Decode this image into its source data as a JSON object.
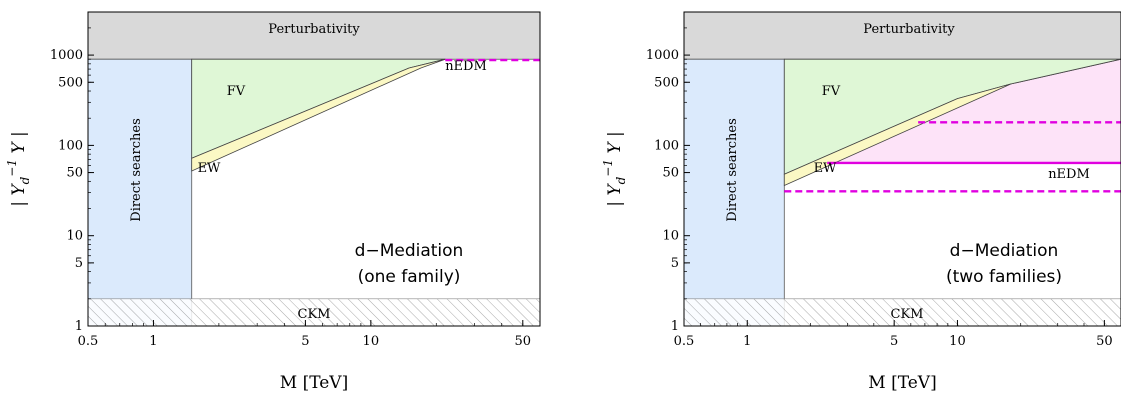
{
  "chart_data": [
    {
      "type": "area",
      "scale": {
        "x": "log",
        "y": "log"
      },
      "xlim": [
        0.5,
        60
      ],
      "ylim": [
        1,
        3000
      ],
      "xlabel": "M [TeV]",
      "ylabel": "| Y_d^{-1} Y |",
      "xticks": [
        "0.5",
        "1",
        "5",
        "10",
        "50"
      ],
      "xtick_values": [
        0.5,
        1,
        5,
        10,
        50
      ],
      "yticks": [
        "1",
        "5",
        "10",
        "50",
        "100",
        "500",
        "1000"
      ],
      "ytick_values": [
        1,
        5,
        10,
        50,
        100,
        500,
        1000
      ],
      "annotation": [
        "d−Mediation",
        "(one family)"
      ],
      "regions": [
        {
          "label": "Perturbativity",
          "kind": "band_y",
          "y": [
            900,
            3000
          ],
          "color": "#d9d9d9"
        },
        {
          "label": "Direct searches",
          "kind": "band_x",
          "x": [
            0.5,
            1.5
          ],
          "color": "#dbeafc"
        },
        {
          "label": "CKM",
          "kind": "hatch_y",
          "y": [
            1,
            2
          ]
        },
        {
          "label": "FV",
          "kind": "polygon",
          "color": "#dff7d6",
          "points": [
            [
              1.5,
              900
            ],
            [
              22,
              900
            ],
            [
              15,
              720
            ],
            [
              1.5,
              72
            ]
          ]
        },
        {
          "label": "EW",
          "kind": "polygon",
          "color": "#fbf8c4",
          "points": [
            [
              1.5,
              72
            ],
            [
              15,
              720
            ],
            [
              22,
              900
            ],
            [
              17,
              720
            ],
            [
              1.5,
              52
            ]
          ]
        }
      ],
      "lines": [
        {
          "label": "nEDM",
          "style": "dashed",
          "color": "#e000e0",
          "points": [
            [
              22,
              880
            ],
            [
              60,
              880
            ]
          ]
        }
      ]
    },
    {
      "type": "area",
      "scale": {
        "x": "log",
        "y": "log"
      },
      "xlim": [
        0.5,
        60
      ],
      "ylim": [
        1,
        3000
      ],
      "xlabel": "M [TeV]",
      "ylabel": "| Y_d^{-1} Y |",
      "xticks": [
        "0.5",
        "1",
        "5",
        "10",
        "50"
      ],
      "xtick_values": [
        0.5,
        1,
        5,
        10,
        50
      ],
      "yticks": [
        "1",
        "5",
        "10",
        "50",
        "100",
        "500",
        "1000"
      ],
      "ytick_values": [
        1,
        5,
        10,
        50,
        100,
        500,
        1000
      ],
      "annotation": [
        "d−Mediation",
        "(two families)"
      ],
      "regions": [
        {
          "label": "Perturbativity",
          "kind": "band_y",
          "y": [
            900,
            3000
          ],
          "color": "#d9d9d9"
        },
        {
          "label": "Direct searches",
          "kind": "band_x",
          "x": [
            0.5,
            1.5
          ],
          "color": "#dbeafc"
        },
        {
          "label": "CKM",
          "kind": "hatch_y",
          "y": [
            1,
            2
          ]
        },
        {
          "label": "",
          "kind": "polygon",
          "color": "#fde3f8",
          "points": [
            [
              2.4,
              64
            ],
            [
              60,
              64
            ],
            [
              60,
              900
            ],
            [
              18,
              480
            ],
            [
              2.4,
              130
            ]
          ]
        },
        {
          "label": "FV",
          "kind": "polygon",
          "color": "#dff7d6",
          "points": [
            [
              1.5,
              900
            ],
            [
              60,
              900
            ],
            [
              18,
              480
            ],
            [
              10,
              330
            ],
            [
              1.5,
              48
            ]
          ]
        },
        {
          "label": "EW",
          "kind": "polygon",
          "color": "#fbf8c4",
          "points": [
            [
              1.5,
              48
            ],
            [
              10,
              330
            ],
            [
              18,
              480
            ],
            [
              1.5,
              36
            ]
          ]
        }
      ],
      "lines": [
        {
          "label": "",
          "style": "dashed",
          "color": "#e000e0",
          "points": [
            [
              6.5,
              180
            ],
            [
              60,
              180
            ]
          ]
        },
        {
          "label": "",
          "style": "solid",
          "color": "#e000e0",
          "points": [
            [
              2.4,
              64
            ],
            [
              60,
              64
            ]
          ]
        },
        {
          "label": "nEDM",
          "style": "dashed",
          "color": "#e000e0",
          "points": [
            [
              1.5,
              31
            ],
            [
              60,
              31
            ]
          ]
        }
      ]
    }
  ]
}
